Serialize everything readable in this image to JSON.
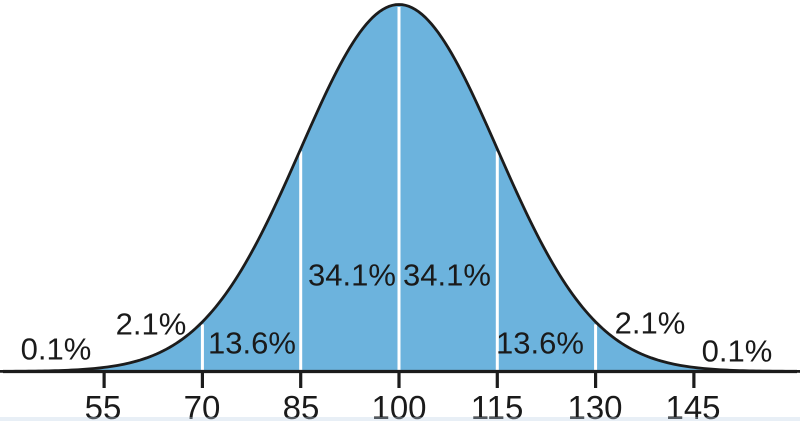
{
  "chart_data": {
    "type": "area",
    "title": "",
    "description_of_plot": "normal-distribution-density-curve",
    "distribution": {
      "shape": "normal",
      "mean": 100,
      "std_dev": 15
    },
    "x_axis_range": [
      40,
      160
    ],
    "x_ticks": [
      "55",
      "70",
      "85",
      "100",
      "115",
      "130",
      "145"
    ],
    "x_tick_values": [
      55,
      70,
      85,
      100,
      115,
      130,
      145
    ],
    "divider_values": [
      70,
      85,
      100,
      115,
      130
    ],
    "grid": "off",
    "legend": "none",
    "segments": [
      {
        "range": "below 55",
        "label": "0.1%",
        "value": 0.1
      },
      {
        "range": "55-70",
        "label": "2.1%",
        "value": 2.1
      },
      {
        "range": "70-85",
        "label": "13.6%",
        "value": 13.6
      },
      {
        "range": "85-100",
        "label": "34.1%",
        "value": 34.1
      },
      {
        "range": "100-115",
        "label": "34.1%",
        "value": 34.1
      },
      {
        "range": "115-130",
        "label": "13.6%",
        "value": 13.6
      },
      {
        "range": "130-145",
        "label": "2.1%",
        "value": 2.1
      },
      {
        "range": "above 145",
        "label": "0.1%",
        "value": 0.1
      }
    ],
    "colors": {
      "fill": "#6cb3dd",
      "curve_stroke": "#1c1c1c",
      "axis": "#1c1c1c",
      "divider": "#ffffff",
      "text": "#1a1a1a",
      "background": "#ffffff"
    }
  }
}
